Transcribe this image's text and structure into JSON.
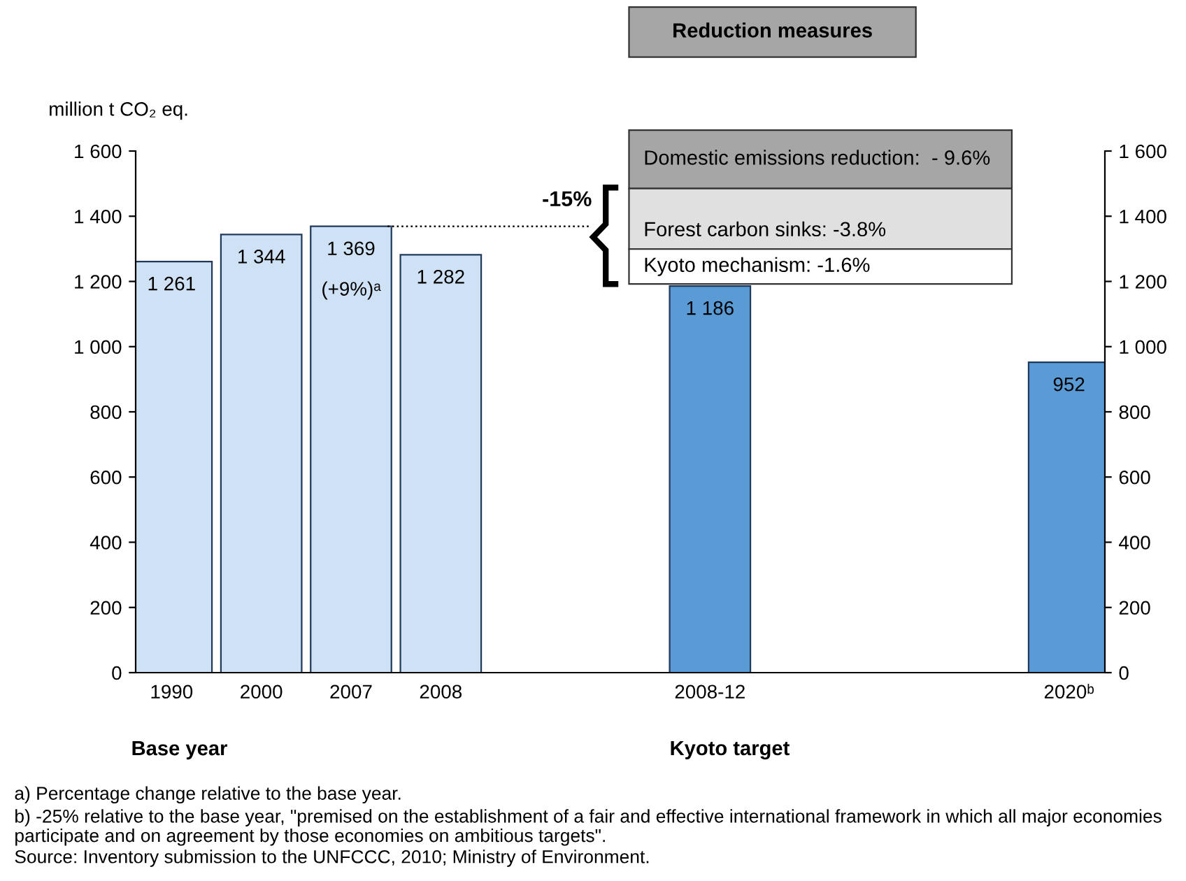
{
  "chart_data": {
    "type": "bar",
    "ylabel": "million t CO₂ eq.",
    "categories": [
      "1990",
      "2000",
      "2007",
      "2008",
      null,
      null,
      "2008-12",
      null,
      null,
      null,
      "2020ᵇ"
    ],
    "values": [
      1261,
      1344,
      1369,
      1282,
      null,
      null,
      1186,
      null,
      null,
      null,
      952
    ],
    "colors": [
      "#cfe2f5",
      "#cfe2f5",
      "#cfe2f5",
      "#cfe2f5",
      null,
      null,
      "#5b9bd5",
      null,
      null,
      null,
      "#5b9bd5"
    ],
    "value_labels": [
      "1 261",
      "1 344",
      "1 369",
      "1 282",
      null,
      null,
      "1 186",
      null,
      null,
      null,
      "952"
    ],
    "ylim": [
      0,
      1600
    ],
    "yticks": [
      0,
      200,
      400,
      600,
      800,
      {
        "value": 1000,
        "label": "1 000"
      },
      {
        "value": 1200,
        "label": "1 200"
      },
      {
        "value": 1400,
        "label": "1 400"
      },
      {
        "value": 1600,
        "label": "1 600"
      }
    ],
    "y2lim": [
      0,
      1600
    ],
    "y2ticks": [
      0,
      200,
      400,
      600,
      800,
      {
        "value": 1000,
        "label": "1 000"
      },
      {
        "value": 1200,
        "label": "1 200"
      },
      {
        "value": 1400,
        "label": "1 400"
      },
      {
        "value": 1600,
        "label": "1 600"
      }
    ],
    "ref_lines": [
      {
        "axis": "y",
        "value": 1369,
        "line_style": "dotted",
        "color": "#000000"
      }
    ],
    "annotations": [
      "(+9%)ᵃ",
      "-15%",
      "Reduction measures",
      "Domestic emissions reduction:  - 9.6%",
      "Forest carbon sinks: -3.8%",
      "Kyoto mechanism: -1.6%",
      "Base year",
      "Kyoto target",
      "a) Percentage change relative to the base year.",
      "b) -25% relative to the base year, \"premised on the establishment of a fair and effective international framework in which all major economies",
      "participate and on agreement by those economies on ambitious targets\".",
      "Source: Inventory submission to the UNFCCC, 2010; Ministry of Environment."
    ],
    "grid": false,
    "legend": false
  }
}
